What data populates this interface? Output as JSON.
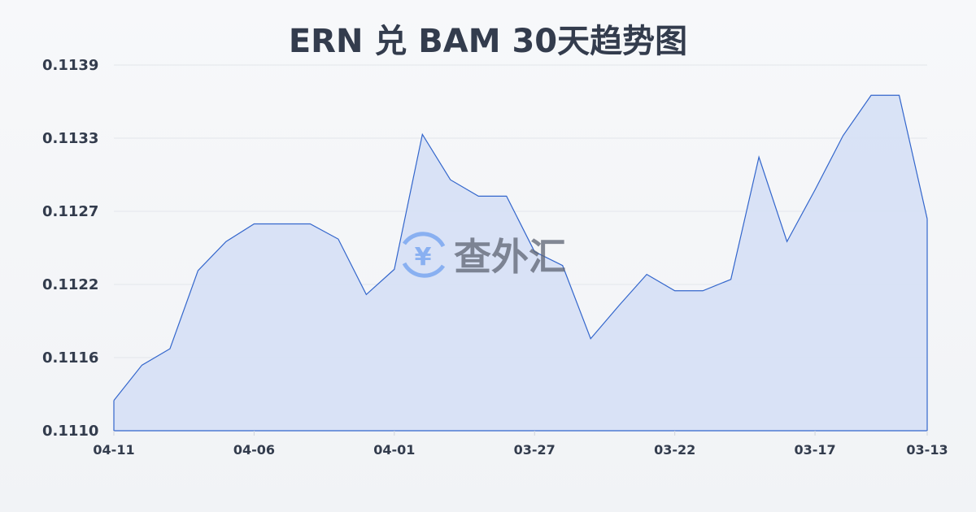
{
  "chart_data": {
    "type": "area",
    "title": "ERN 兑 BAM 30天趋势图",
    "xlabel": "",
    "ylabel": "",
    "x": [
      "04-11",
      "04-10",
      "04-09",
      "04-08",
      "04-07",
      "04-06",
      "04-05",
      "04-04",
      "04-03",
      "04-02",
      "04-01",
      "03-31",
      "03-30",
      "03-29",
      "03-28",
      "03-27",
      "03-26",
      "03-25",
      "03-24",
      "03-23",
      "03-22",
      "03-21",
      "03-20",
      "03-19",
      "03-18",
      "03-17",
      "03-16",
      "03-15",
      "03-14",
      "03-13"
    ],
    "values": [
      0.11124,
      0.11152,
      0.11165,
      0.11227,
      0.1125,
      0.11264,
      0.11264,
      0.11264,
      0.11252,
      0.11208,
      0.11228,
      0.11335,
      0.11299,
      0.11286,
      0.11286,
      0.11242,
      0.11231,
      0.11173,
      0.11199,
      0.11224,
      0.11211,
      0.11211,
      0.1122,
      0.11317,
      0.1125,
      0.11291,
      0.11334,
      0.11366,
      0.11366,
      0.11268
    ],
    "x_tick_labels": [
      "04-11",
      "04-06",
      "04-01",
      "03-27",
      "03-22",
      "03-17",
      "03-13"
    ],
    "y_tick_labels": [
      "0.1110",
      "0.1116",
      "0.1122",
      "0.1127",
      "0.1133",
      "0.1139"
    ],
    "ylim": [
      0.111,
      0.1139
    ],
    "grid": true,
    "line_color": "#3366cc",
    "fill_color": "#d6e0f5"
  },
  "watermark": {
    "text": "查外汇",
    "icon": "yen-exchange-icon"
  }
}
